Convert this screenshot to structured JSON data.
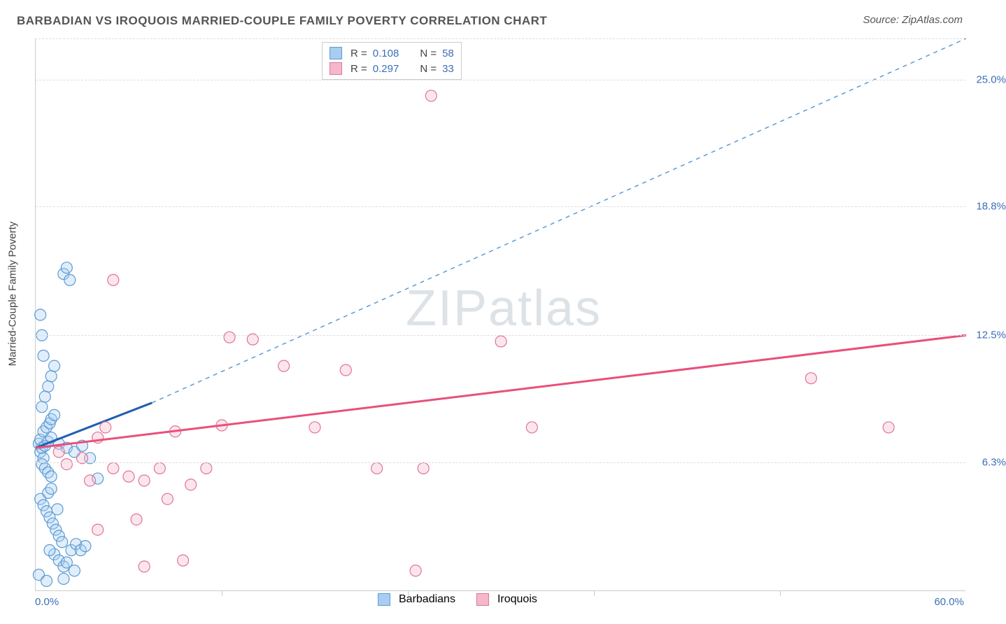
{
  "header": {
    "title": "BARBADIAN VS IROQUOIS MARRIED-COUPLE FAMILY POVERTY CORRELATION CHART",
    "source": "Source: ZipAtlas.com"
  },
  "watermark": "ZIPatlas",
  "chart": {
    "type": "scatter",
    "ylabel": "Married-Couple Family Poverty",
    "background_color": "#ffffff",
    "grid_color": "#dddddd",
    "axis_color": "#cccccc",
    "label_fontsize": 15,
    "title_fontsize": 17,
    "xlim": [
      0,
      60
    ],
    "ylim": [
      0,
      27
    ],
    "x_axis_labels": {
      "left": "0.0%",
      "right": "60.0%"
    },
    "y_ticks": [
      {
        "value": 6.3,
        "label": "6.3%"
      },
      {
        "value": 12.5,
        "label": "12.5%"
      },
      {
        "value": 18.8,
        "label": "18.8%"
      },
      {
        "value": 25.0,
        "label": "25.0%"
      }
    ],
    "x_tick_positions": [
      12,
      24,
      36,
      48
    ],
    "marker_radius": 8,
    "marker_fill_opacity": 0.35,
    "marker_stroke_width": 1.2,
    "series": [
      {
        "name": "Barbadians",
        "stroke_color": "#5b9bd5",
        "fill_color": "#a8cdf0",
        "r_value": "0.108",
        "n_value": "58",
        "points": [
          [
            0.2,
            7.2
          ],
          [
            0.3,
            6.8
          ],
          [
            0.4,
            7.0
          ],
          [
            0.5,
            6.5
          ],
          [
            0.3,
            7.4
          ],
          [
            0.6,
            7.1
          ],
          [
            0.8,
            7.3
          ],
          [
            0.4,
            6.2
          ],
          [
            0.5,
            7.8
          ],
          [
            0.7,
            8.0
          ],
          [
            0.9,
            8.2
          ],
          [
            1.0,
            8.4
          ],
          [
            1.2,
            8.6
          ],
          [
            0.6,
            6.0
          ],
          [
            0.8,
            5.8
          ],
          [
            1.0,
            5.6
          ],
          [
            0.3,
            4.5
          ],
          [
            0.5,
            4.2
          ],
          [
            0.7,
            3.9
          ],
          [
            0.9,
            3.6
          ],
          [
            1.1,
            3.3
          ],
          [
            1.3,
            3.0
          ],
          [
            1.5,
            2.7
          ],
          [
            1.7,
            2.4
          ],
          [
            1.2,
            1.8
          ],
          [
            1.5,
            1.5
          ],
          [
            1.8,
            1.2
          ],
          [
            2.0,
            1.4
          ],
          [
            2.3,
            2.0
          ],
          [
            2.6,
            2.3
          ],
          [
            2.9,
            2.0
          ],
          [
            3.2,
            2.2
          ],
          [
            0.4,
            9.0
          ],
          [
            0.6,
            9.5
          ],
          [
            0.8,
            10.0
          ],
          [
            1.0,
            10.5
          ],
          [
            1.2,
            11.0
          ],
          [
            0.5,
            11.5
          ],
          [
            0.4,
            12.5
          ],
          [
            0.3,
            13.5
          ],
          [
            1.0,
            7.5
          ],
          [
            1.5,
            7.2
          ],
          [
            2.0,
            7.0
          ],
          [
            2.5,
            6.8
          ],
          [
            3.0,
            7.1
          ],
          [
            3.5,
            6.5
          ],
          [
            1.8,
            15.5
          ],
          [
            2.0,
            15.8
          ],
          [
            2.2,
            15.2
          ],
          [
            0.8,
            4.8
          ],
          [
            1.0,
            5.0
          ],
          [
            4.0,
            5.5
          ],
          [
            0.2,
            0.8
          ],
          [
            2.5,
            1.0
          ],
          [
            1.8,
            0.6
          ],
          [
            0.7,
            0.5
          ],
          [
            1.4,
            4.0
          ],
          [
            0.9,
            2.0
          ]
        ],
        "trend": {
          "solid": {
            "x1": 0,
            "y1": 7.0,
            "x2": 7.5,
            "y2": 9.2,
            "width": 3,
            "color": "#1f5fb0"
          },
          "dashed": {
            "x1": 7.5,
            "y1": 9.2,
            "x2": 60,
            "y2": 27.0,
            "width": 1.5,
            "color": "#5b9bd5",
            "dash": "6,6"
          }
        }
      },
      {
        "name": "Iroquois",
        "stroke_color": "#e27396",
        "fill_color": "#f5b8cb",
        "r_value": "0.297",
        "n_value": "33",
        "points": [
          [
            1.5,
            6.8
          ],
          [
            2.0,
            6.2
          ],
          [
            3.0,
            6.5
          ],
          [
            3.5,
            5.4
          ],
          [
            4.0,
            7.5
          ],
          [
            4.5,
            8.0
          ],
          [
            5.0,
            6.0
          ],
          [
            6.0,
            5.6
          ],
          [
            7.0,
            5.4
          ],
          [
            8.0,
            6.0
          ],
          [
            8.5,
            4.5
          ],
          [
            9.0,
            7.8
          ],
          [
            10.0,
            5.2
          ],
          [
            11.0,
            6.0
          ],
          [
            12.0,
            8.1
          ],
          [
            7.0,
            1.2
          ],
          [
            9.5,
            1.5
          ],
          [
            12.5,
            12.4
          ],
          [
            14.0,
            12.3
          ],
          [
            16.0,
            11.0
          ],
          [
            18.0,
            8.0
          ],
          [
            20.0,
            10.8
          ],
          [
            22.0,
            6.0
          ],
          [
            24.5,
            1.0
          ],
          [
            30.0,
            12.2
          ],
          [
            32.0,
            8.0
          ],
          [
            50.0,
            10.4
          ],
          [
            55.0,
            8.0
          ],
          [
            5.0,
            15.2
          ],
          [
            4.0,
            3.0
          ],
          [
            6.5,
            3.5
          ],
          [
            25.0,
            6.0
          ],
          [
            25.5,
            24.2
          ]
        ],
        "trend": {
          "solid": {
            "x1": 0,
            "y1": 7.0,
            "x2": 60,
            "y2": 12.5,
            "width": 3,
            "color": "#e94f7a"
          }
        }
      }
    ]
  },
  "legend": {
    "top": {
      "border_color": "#cccccc",
      "rows": [
        {
          "swatch_fill": "#a8cdf0",
          "swatch_stroke": "#5b9bd5",
          "r": "0.108",
          "n": "58"
        },
        {
          "swatch_fill": "#f5b8cb",
          "swatch_stroke": "#e27396",
          "r": "0.297",
          "n": "33"
        }
      ]
    },
    "bottom": [
      {
        "swatch_fill": "#a8cdf0",
        "swatch_stroke": "#5b9bd5",
        "label": "Barbadians"
      },
      {
        "swatch_fill": "#f5b8cb",
        "swatch_stroke": "#e27396",
        "label": "Iroquois"
      }
    ]
  }
}
